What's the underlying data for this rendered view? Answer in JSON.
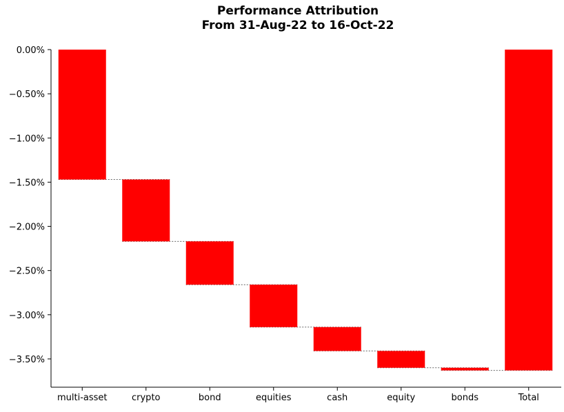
{
  "chart_data": {
    "type": "bar",
    "subtype": "waterfall",
    "title": "Performance Attribution",
    "subtitle": "From 31-Aug-22 to 16-Oct-22",
    "xlabel": "",
    "ylabel": "",
    "categories": [
      "multi-asset",
      "crypto",
      "bond",
      "equities",
      "cash",
      "equity",
      "bonds",
      "Total"
    ],
    "values": [
      -1.47,
      -0.7,
      -0.49,
      -0.48,
      -0.27,
      -0.19,
      -0.03,
      -3.63
    ],
    "cumulative": [
      -1.47,
      -2.17,
      -2.66,
      -3.14,
      -3.41,
      -3.6,
      -3.63,
      -3.63
    ],
    "ylim": [
      -3.82,
      0.0
    ],
    "yticks": [
      0.0,
      -0.5,
      -1.0,
      -1.5,
      -2.0,
      -2.5,
      -3.0,
      -3.5
    ],
    "ytick_labels": [
      "0.00%",
      "−0.50%",
      "−1.00%",
      "−1.50%",
      "−2.00%",
      "−2.50%",
      "−3.00%",
      "−3.50%"
    ],
    "bar_color": "#ff0000",
    "connector_color": "#666666",
    "grid": false,
    "legend": "none"
  }
}
